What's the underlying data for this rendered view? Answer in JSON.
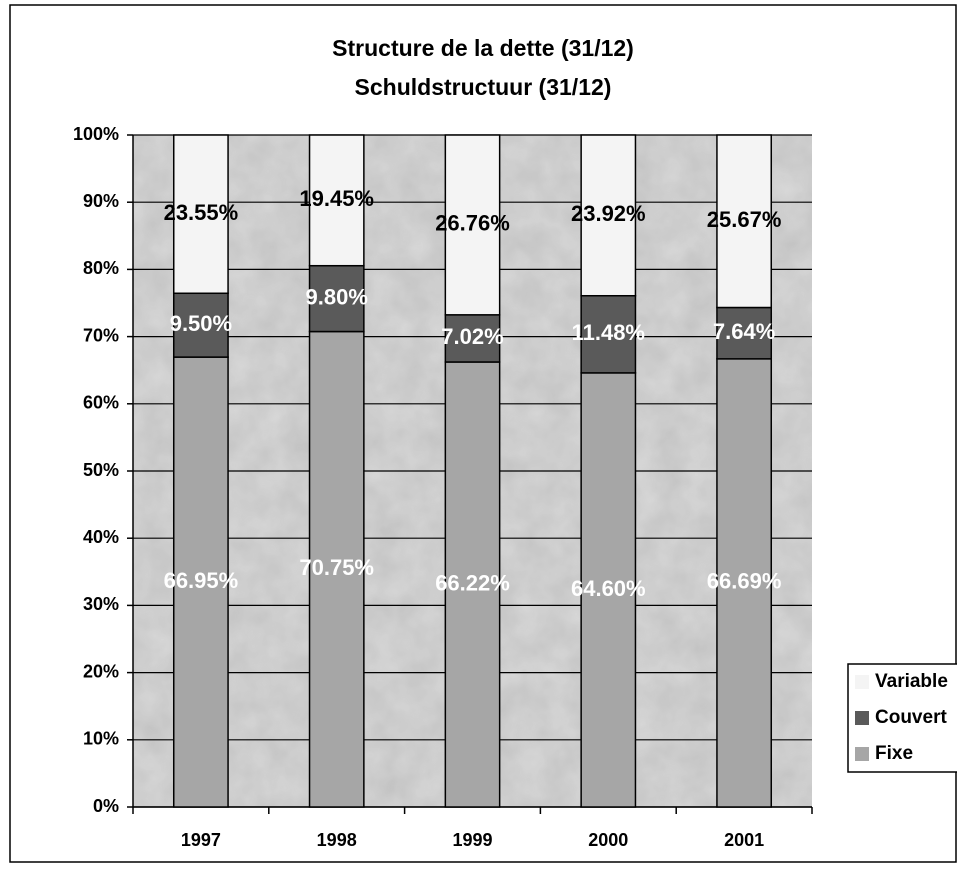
{
  "chart_data": {
    "type": "stacked_bar",
    "title": [
      "Structure de la dette (31/12)",
      "Schuldstructuur (31/12)"
    ],
    "categories": [
      "1997",
      "1998",
      "1999",
      "2000",
      "2001"
    ],
    "series": [
      {
        "name": "Fixe",
        "color": "#a6a6a6",
        "label_color": "#ffffff",
        "values": [
          66.95,
          70.75,
          66.22,
          64.6,
          66.69
        ],
        "value_labels": [
          "66.95%",
          "70.75%",
          "66.22%",
          "64.60%",
          "66.69%"
        ]
      },
      {
        "name": "Couvert",
        "color": "#5a5a5a",
        "label_color": "#ffffff",
        "values": [
          9.5,
          9.8,
          7.02,
          11.48,
          7.64
        ],
        "value_labels": [
          "9.50%",
          "9.80%",
          "7.02%",
          "11.48%",
          "7.64%"
        ]
      },
      {
        "name": "Variable",
        "color": "#f4f4f4",
        "label_color": "#000000",
        "values": [
          23.55,
          19.45,
          26.76,
          23.92,
          25.67
        ],
        "value_labels": [
          "23.55%",
          "19.45%",
          "26.76%",
          "23.92%",
          "25.67%"
        ]
      }
    ],
    "ylim": [
      0,
      100
    ],
    "yticks": [
      {
        "value": 0,
        "label": "0%"
      },
      {
        "value": 10,
        "label": "10%"
      },
      {
        "value": 20,
        "label": "20%"
      },
      {
        "value": 30,
        "label": "30%"
      },
      {
        "value": 40,
        "label": "40%"
      },
      {
        "value": 50,
        "label": "50%"
      },
      {
        "value": 60,
        "label": "60%"
      },
      {
        "value": 70,
        "label": "70%"
      },
      {
        "value": 80,
        "label": "80%"
      },
      {
        "value": 90,
        "label": "90%"
      },
      {
        "value": 100,
        "label": "100%"
      }
    ],
    "grid": true,
    "legend": "right"
  }
}
